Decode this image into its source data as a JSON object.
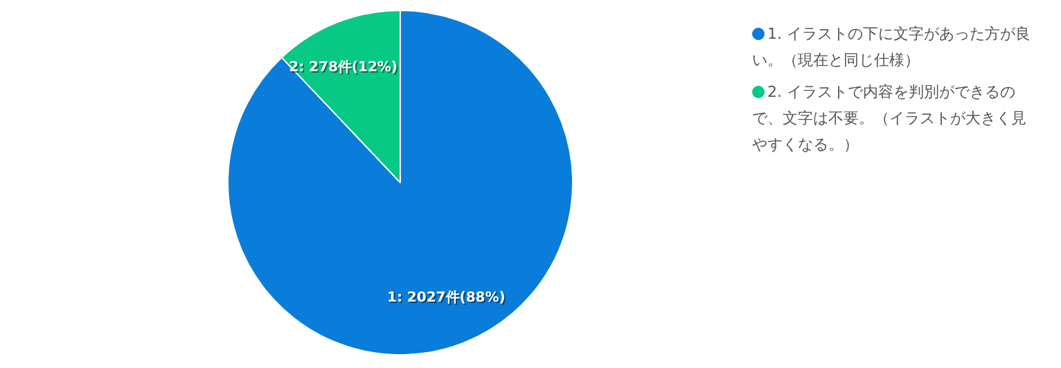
{
  "chart_data": {
    "type": "pie",
    "categories": [
      "1. イラストの下に文字があった方が良い。（現在と同じ仕様）",
      "2. イラストで内容を判別ができるので、文字は不要。（イラストが大きく見やすくなる。）"
    ],
    "values": [
      2027,
      278
    ],
    "colors": [
      "#0a7cd9",
      "#07c985"
    ],
    "value_labels": [
      "1: 2027件(88%)",
      "2: 278件(12%)"
    ],
    "legend": "top right"
  }
}
